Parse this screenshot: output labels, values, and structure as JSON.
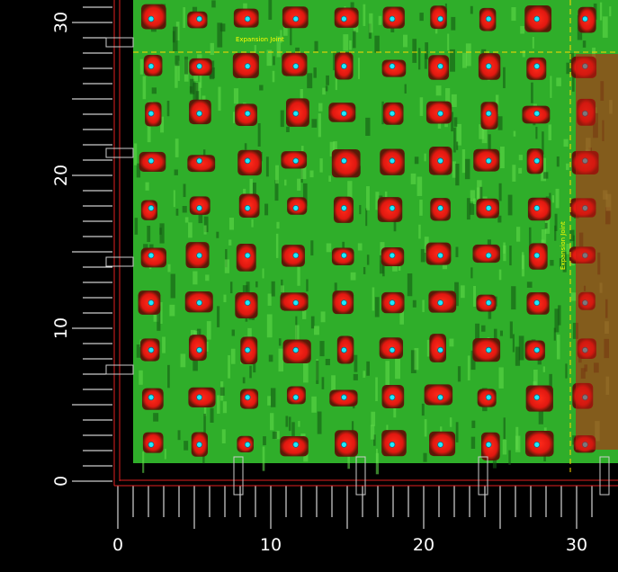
{
  "axes": {
    "x_labels": [
      "0",
      "10",
      "20",
      "30"
    ],
    "y_labels": [
      "0",
      "10",
      "20",
      "30"
    ]
  },
  "annotations": [
    "Expansion Joint",
    "Expansion Joint"
  ]
}
